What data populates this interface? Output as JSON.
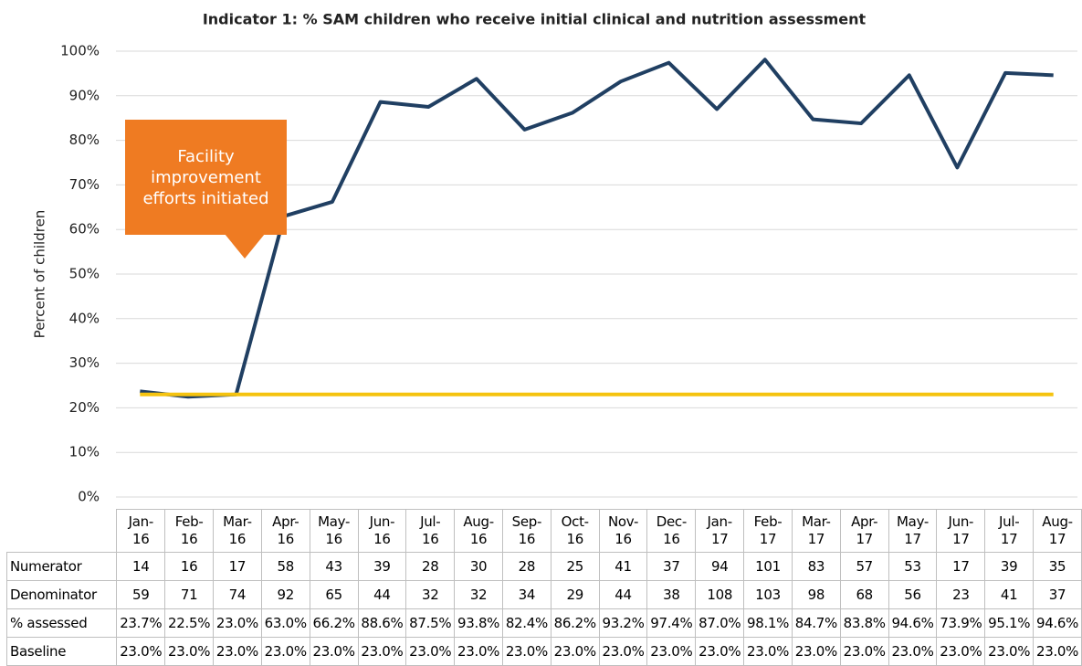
{
  "chart_data": {
    "type": "line",
    "title": "Indicator 1: % SAM children who receive initial clinical and nutrition assessment",
    "y_label": "Percent of children",
    "annotation": "Facility improvement efforts initiated",
    "annotation_color": "#ef7b22",
    "categories": [
      "Jan-16",
      "Feb-16",
      "Mar-16",
      "Apr-16",
      "May-16",
      "Jun-16",
      "Jul-16",
      "Aug-16",
      "Sep-16",
      "Oct-16",
      "Nov-16",
      "Dec-16",
      "Jan-17",
      "Feb-17",
      "Mar-17",
      "Apr-17",
      "May-17",
      "Jun-17",
      "Jul-17",
      "Aug-17"
    ],
    "table_rows": [
      {
        "name": "Numerator",
        "values": [
          14,
          16,
          17,
          58,
          43,
          39,
          28,
          30,
          28,
          25,
          41,
          37,
          94,
          101,
          83,
          57,
          53,
          17,
          39,
          35
        ]
      },
      {
        "name": "Denominator",
        "values": [
          59,
          71,
          74,
          92,
          65,
          44,
          32,
          32,
          34,
          29,
          44,
          38,
          108,
          103,
          98,
          68,
          56,
          23,
          41,
          37
        ]
      }
    ],
    "series": [
      {
        "name": "% assessed",
        "color": "#203f62",
        "values": [
          23.7,
          22.5,
          23.0,
          63.0,
          66.2,
          88.6,
          87.5,
          93.8,
          82.4,
          86.2,
          93.2,
          97.4,
          87.0,
          98.1,
          84.7,
          83.8,
          94.6,
          73.9,
          95.1,
          94.6
        ],
        "value_labels": [
          "23.7%",
          "22.5%",
          "23.0%",
          "63.0%",
          "66.2%",
          "88.6%",
          "87.5%",
          "93.8%",
          "82.4%",
          "86.2%",
          "93.2%",
          "97.4%",
          "87.0%",
          "98.1%",
          "84.7%",
          "83.8%",
          "94.6%",
          "73.9%",
          "95.1%",
          "94.6%"
        ]
      },
      {
        "name": "Baseline",
        "color": "#f5c30f",
        "values": [
          23.0,
          23.0,
          23.0,
          23.0,
          23.0,
          23.0,
          23.0,
          23.0,
          23.0,
          23.0,
          23.0,
          23.0,
          23.0,
          23.0,
          23.0,
          23.0,
          23.0,
          23.0,
          23.0,
          23.0
        ],
        "value_labels": [
          "23.0%",
          "23.0%",
          "23.0%",
          "23.0%",
          "23.0%",
          "23.0%",
          "23.0%",
          "23.0%",
          "23.0%",
          "23.0%",
          "23.0%",
          "23.0%",
          "23.0%",
          "23.0%",
          "23.0%",
          "23.0%",
          "23.0%",
          "23.0%",
          "23.0%",
          "23.0%"
        ]
      }
    ],
    "ylim": [
      0,
      100
    ],
    "yticks": [
      {
        "value": 0,
        "label": "0%"
      },
      {
        "value": 10,
        "label": "10%"
      },
      {
        "value": 20,
        "label": "20%"
      },
      {
        "value": 30,
        "label": "30%"
      },
      {
        "value": 40,
        "label": "40%"
      },
      {
        "value": 50,
        "label": "50%"
      },
      {
        "value": 60,
        "label": "60%"
      },
      {
        "value": 70,
        "label": "70%"
      },
      {
        "value": 80,
        "label": "80%"
      },
      {
        "value": 90,
        "label": "90%"
      },
      {
        "value": 100,
        "label": "100%"
      }
    ],
    "grid": true
  }
}
